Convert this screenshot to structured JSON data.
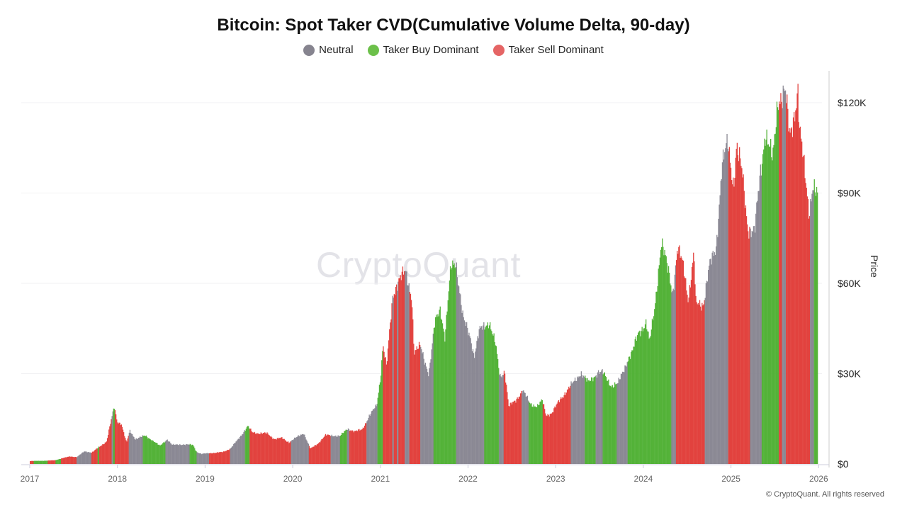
{
  "chart_data": {
    "type": "bar",
    "title": "Bitcoin: Spot Taker CVD(Cumulative Volume Delta, 90-day)",
    "ylabel": "Price",
    "ylim": [
      0,
      130000
    ],
    "yticks": [
      "$0",
      "$30K",
      "$60K",
      "$90K",
      "$120K"
    ],
    "ytick_values": [
      0,
      30000,
      60000,
      90000,
      120000
    ],
    "xticks": [
      "2017",
      "2018",
      "2019",
      "2020",
      "2021",
      "2022",
      "2023",
      "2024",
      "2025",
      "2026"
    ],
    "xlim": [
      "2017-01-01",
      "2026-01-01"
    ],
    "y_axis_side": "right",
    "grid": true,
    "legend_position": "top",
    "legend": [
      {
        "name": "Neutral",
        "key": "neutral",
        "color": "#86848f"
      },
      {
        "name": "Taker Buy Dominant",
        "key": "buy",
        "color": "#4caf2f"
      },
      {
        "name": "Taker Sell Dominant",
        "key": "sell",
        "color": "#e03a36"
      }
    ],
    "price": [
      [
        "2017-01-01",
        970
      ],
      [
        "2017-02-15",
        1050
      ],
      [
        "2017-03-15",
        1100
      ],
      [
        "2017-04-15",
        1250
      ],
      [
        "2017-05-15",
        1900
      ],
      [
        "2017-06-15",
        2500
      ],
      [
        "2017-07-15",
        2300
      ],
      [
        "2017-08-15",
        4200
      ],
      [
        "2017-09-15",
        3800
      ],
      [
        "2017-10-15",
        5600
      ],
      [
        "2017-11-15",
        7500
      ],
      [
        "2017-12-17",
        19000
      ],
      [
        "2017-12-30",
        14000
      ],
      [
        "2018-01-15",
        13500
      ],
      [
        "2018-02-06",
        7000
      ],
      [
        "2018-02-20",
        11000
      ],
      [
        "2018-03-15",
        8300
      ],
      [
        "2018-04-25",
        9400
      ],
      [
        "2018-05-15",
        8400
      ],
      [
        "2018-06-25",
        6000
      ],
      [
        "2018-07-25",
        8200
      ],
      [
        "2018-08-15",
        6300
      ],
      [
        "2018-09-15",
        6500
      ],
      [
        "2018-10-15",
        6400
      ],
      [
        "2018-11-10",
        6350
      ],
      [
        "2018-11-25",
        4000
      ],
      [
        "2018-12-15",
        3300
      ],
      [
        "2019-01-15",
        3600
      ],
      [
        "2019-02-15",
        3700
      ],
      [
        "2019-03-15",
        4000
      ],
      [
        "2019-04-15",
        5100
      ],
      [
        "2019-05-15",
        8000
      ],
      [
        "2019-06-26",
        12500
      ],
      [
        "2019-07-15",
        10500
      ],
      [
        "2019-08-15",
        10200
      ],
      [
        "2019-09-15",
        10100
      ],
      [
        "2019-10-15",
        8300
      ],
      [
        "2019-11-15",
        8600
      ],
      [
        "2019-12-15",
        7200
      ],
      [
        "2020-01-15",
        8800
      ],
      [
        "2020-02-14",
        10300
      ],
      [
        "2020-03-13",
        5000
      ],
      [
        "2020-04-15",
        6900
      ],
      [
        "2020-05-15",
        9500
      ],
      [
        "2020-06-15",
        9500
      ],
      [
        "2020-07-15",
        9200
      ],
      [
        "2020-08-15",
        11800
      ],
      [
        "2020-09-15",
        10700
      ],
      [
        "2020-10-15",
        11500
      ],
      [
        "2020-11-15",
        16000
      ],
      [
        "2020-12-15",
        19500
      ],
      [
        "2020-12-31",
        29000
      ],
      [
        "2021-01-10",
        40000
      ],
      [
        "2021-01-25",
        32000
      ],
      [
        "2021-02-20",
        56000
      ],
      [
        "2021-03-13",
        61000
      ],
      [
        "2021-04-14",
        63500
      ],
      [
        "2021-05-10",
        56000
      ],
      [
        "2021-05-20",
        37000
      ],
      [
        "2021-06-15",
        39000
      ],
      [
        "2021-07-20",
        30000
      ],
      [
        "2021-08-15",
        47000
      ],
      [
        "2021-09-06",
        52000
      ],
      [
        "2021-09-25",
        42000
      ],
      [
        "2021-10-20",
        65000
      ],
      [
        "2021-11-10",
        67500
      ],
      [
        "2021-12-10",
        48000
      ],
      [
        "2022-01-10",
        42000
      ],
      [
        "2022-01-25",
        36000
      ],
      [
        "2022-02-15",
        44000
      ],
      [
        "2022-03-28",
        47500
      ],
      [
        "2022-04-25",
        39000
      ],
      [
        "2022-05-12",
        29000
      ],
      [
        "2022-06-01",
        31000
      ],
      [
        "2022-06-18",
        19000
      ],
      [
        "2022-07-15",
        21000
      ],
      [
        "2022-08-14",
        24500
      ],
      [
        "2022-09-15",
        20000
      ],
      [
        "2022-10-15",
        19200
      ],
      [
        "2022-11-05",
        21000
      ],
      [
        "2022-11-20",
        16200
      ],
      [
        "2022-12-15",
        17000
      ],
      [
        "2023-01-15",
        21000
      ],
      [
        "2023-02-15",
        24500
      ],
      [
        "2023-03-25",
        28000
      ],
      [
        "2023-04-14",
        30500
      ],
      [
        "2023-05-15",
        27000
      ],
      [
        "2023-06-25",
        30600
      ],
      [
        "2023-07-15",
        30200
      ],
      [
        "2023-08-20",
        26000
      ],
      [
        "2023-09-15",
        26500
      ],
      [
        "2023-10-25",
        34500
      ],
      [
        "2023-11-15",
        37000
      ],
      [
        "2023-12-10",
        44000
      ],
      [
        "2024-01-11",
        46500
      ],
      [
        "2024-01-25",
        40000
      ],
      [
        "2024-02-15",
        52000
      ],
      [
        "2024-03-14",
        73000
      ],
      [
        "2024-04-15",
        64000
      ],
      [
        "2024-05-01",
        57000
      ],
      [
        "2024-05-21",
        71000
      ],
      [
        "2024-06-15",
        66000
      ],
      [
        "2024-07-05",
        55000
      ],
      [
        "2024-07-29",
        69500
      ],
      [
        "2024-08-05",
        53000
      ],
      [
        "2024-09-06",
        53500
      ],
      [
        "2024-09-30",
        65000
      ],
      [
        "2024-10-29",
        72000
      ],
      [
        "2024-11-22",
        99000
      ],
      [
        "2024-12-17",
        106000
      ],
      [
        "2025-01-10",
        93000
      ],
      [
        "2025-01-22",
        106000
      ],
      [
        "2025-02-15",
        96000
      ],
      [
        "2025-03-10",
        79000
      ],
      [
        "2025-04-08",
        77000
      ],
      [
        "2025-05-01",
        96000
      ],
      [
        "2025-05-22",
        111000
      ],
      [
        "2025-06-22",
        100000
      ],
      [
        "2025-07-14",
        122000
      ],
      [
        "2025-08-13",
        123500
      ],
      [
        "2025-09-01",
        108000
      ],
      [
        "2025-10-06",
        125000
      ],
      [
        "2025-10-10",
        112000
      ],
      [
        "2025-11-21",
        84000
      ],
      [
        "2025-12-05",
        93000
      ],
      [
        "2025-12-27",
        88000
      ]
    ],
    "regimes": [
      [
        "2017-01-01",
        "sell"
      ],
      [
        "2017-01-15",
        "buy"
      ],
      [
        "2017-03-15",
        "sell"
      ],
      [
        "2017-04-15",
        "buy"
      ],
      [
        "2017-05-08",
        "sell"
      ],
      [
        "2017-07-13",
        "neutral"
      ],
      [
        "2017-09-12",
        "sell"
      ],
      [
        "2017-10-08",
        "buy"
      ],
      [
        "2017-10-16",
        "sell"
      ],
      [
        "2017-12-05",
        "neutral"
      ],
      [
        "2017-12-14",
        "buy"
      ],
      [
        "2017-12-20",
        "sell"
      ],
      [
        "2018-02-17",
        "neutral"
      ],
      [
        "2018-04-16",
        "buy"
      ],
      [
        "2018-07-17",
        "neutral"
      ],
      [
        "2018-10-26",
        "buy"
      ],
      [
        "2018-11-25",
        "neutral"
      ],
      [
        "2019-01-17",
        "sell"
      ],
      [
        "2019-04-15",
        "neutral"
      ],
      [
        "2019-06-13",
        "buy"
      ],
      [
        "2019-07-04",
        "sell"
      ],
      [
        "2019-12-23",
        "neutral"
      ],
      [
        "2020-03-08",
        "sell"
      ],
      [
        "2020-06-05",
        "neutral"
      ],
      [
        "2020-07-16",
        "buy"
      ],
      [
        "2020-08-14",
        "neutral"
      ],
      [
        "2020-08-24",
        "sell"
      ],
      [
        "2020-11-03",
        "neutral"
      ],
      [
        "2020-12-17",
        "buy"
      ],
      [
        "2021-01-10",
        "sell"
      ],
      [
        "2021-02-18",
        "neutral"
      ],
      [
        "2021-02-24",
        "sell"
      ],
      [
        "2021-03-10",
        "neutral"
      ],
      [
        "2021-03-15",
        "sell"
      ],
      [
        "2021-04-12",
        "neutral"
      ],
      [
        "2021-05-01",
        "sell"
      ],
      [
        "2021-06-16",
        "neutral"
      ],
      [
        "2021-08-08",
        "buy"
      ],
      [
        "2021-11-10",
        "neutral"
      ],
      [
        "2022-03-08",
        "buy"
      ],
      [
        "2022-05-07",
        "neutral"
      ],
      [
        "2022-05-27",
        "sell"
      ],
      [
        "2022-08-09",
        "neutral"
      ],
      [
        "2022-09-10",
        "buy"
      ],
      [
        "2022-11-05",
        "sell"
      ],
      [
        "2023-03-04",
        "neutral"
      ],
      [
        "2023-05-01",
        "buy"
      ],
      [
        "2023-06-14",
        "neutral"
      ],
      [
        "2023-07-13",
        "buy"
      ],
      [
        "2023-09-09",
        "neutral"
      ],
      [
        "2023-10-25",
        "buy"
      ],
      [
        "2024-04-26",
        "neutral"
      ],
      [
        "2024-05-14",
        "sell"
      ],
      [
        "2024-09-13",
        "neutral"
      ],
      [
        "2024-12-18",
        "sell"
      ],
      [
        "2025-03-18",
        "neutral"
      ],
      [
        "2025-05-07",
        "buy"
      ],
      [
        "2025-07-17",
        "sell"
      ],
      [
        "2025-07-30",
        "neutral"
      ],
      [
        "2025-08-16",
        "sell"
      ],
      [
        "2025-11-24",
        "neutral"
      ],
      [
        "2025-12-09",
        "buy"
      ]
    ]
  },
  "watermark": "CryptoQuant",
  "copyright": "© CryptoQuant. All rights reserved"
}
